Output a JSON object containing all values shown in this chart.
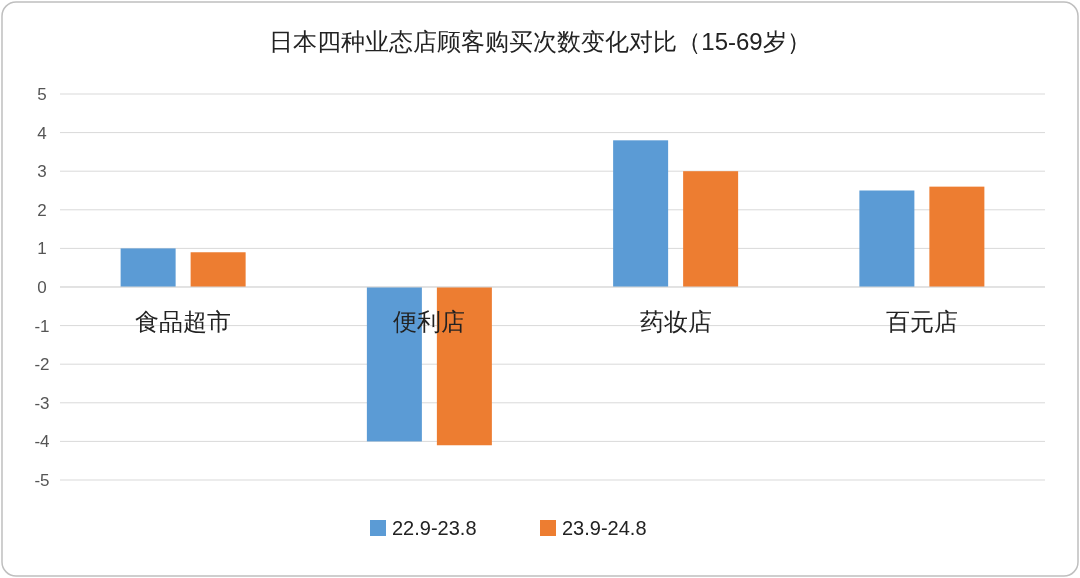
{
  "chart_data": {
    "type": "bar",
    "title": "日本四种业态店顾客购买次数变化对比（15-69岁）",
    "categories": [
      "食品超市",
      "便利店",
      "药妆店",
      "百元店"
    ],
    "series": [
      {
        "name": "22.9-23.8",
        "color": "#5b9bd5",
        "values": [
          1.0,
          -4.0,
          3.8,
          2.5
        ]
      },
      {
        "name": "23.9-24.8",
        "color": "#ed7d31",
        "values": [
          0.9,
          -4.1,
          3.0,
          2.6
        ]
      }
    ],
    "ylim": [
      -5,
      5
    ],
    "yticks": [
      -5,
      -4,
      -3,
      -2,
      -1,
      0,
      1,
      2,
      3,
      4,
      5
    ],
    "grid": "y",
    "legend": "bottom"
  }
}
